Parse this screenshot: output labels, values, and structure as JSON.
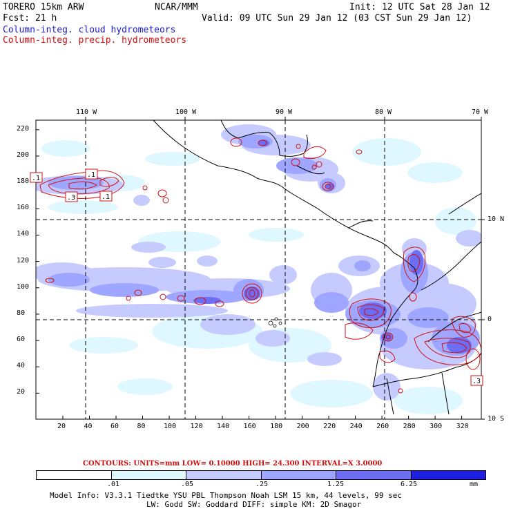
{
  "header": {
    "model": "TORERO  15km ARW",
    "org": "NCAR/MMM",
    "init": "Init: 12 UTC Sat 28 Jan 12",
    "fcst": "Fcst:   21 h",
    "valid": "Valid: 09 UTC Sun 29 Jan 12 (03 CST Sun 29 Jan 12)",
    "field_cloud": "Column-integ. cloud hydrometeors",
    "field_precip": "Column-integ. precip. hydrometeors"
  },
  "colors": {
    "cloud_blue": "#1a1acc",
    "precip_red": "#d01010",
    "shade_1": "#dff8ff",
    "shade_2": "#c6cbff",
    "shade_3": "#9fa6ff",
    "shade_4": "#6e6ef5",
    "shade_5": "#3f3fe8",
    "shade_6": "#1f1fe0"
  },
  "map": {
    "top_lon_labels": [
      "110 W",
      "100 W",
      "90 W",
      "80 W",
      "70 W"
    ],
    "right_lat_labels": [
      "10 N",
      "0",
      "10 S"
    ],
    "y_axis_labels": [
      "220",
      "200",
      "180",
      "160",
      "140",
      "120",
      "100",
      "80",
      "60",
      "40",
      "20"
    ],
    "x_axis_labels": [
      "20",
      "40",
      "60",
      "80",
      "100",
      "120",
      "140",
      "160",
      "180",
      "200",
      "220",
      "240",
      "260",
      "280",
      "300",
      "320"
    ],
    "contour_value_labels": [
      ".1",
      ".1",
      ".3",
      ".1",
      ".3"
    ]
  },
  "contour_info": "CONTOURS:  UNITS=mm  LOW= 0.10000      HIGH=  24.300      INTERVAL=X  3.0000",
  "colorbar": {
    "labels": [
      ".01",
      ".05",
      ".25",
      "1.25",
      "6.25"
    ],
    "unit": "mm"
  },
  "model_info": {
    "line1": "Model Info: V3.3.1   Tiedtke YSU PBL  Thompson    Noah LSM  15 km,   44 levels,   99 sec",
    "line2": "LW: Godd SW: Goddard DIFF: simple KM: 2D Smagor"
  }
}
